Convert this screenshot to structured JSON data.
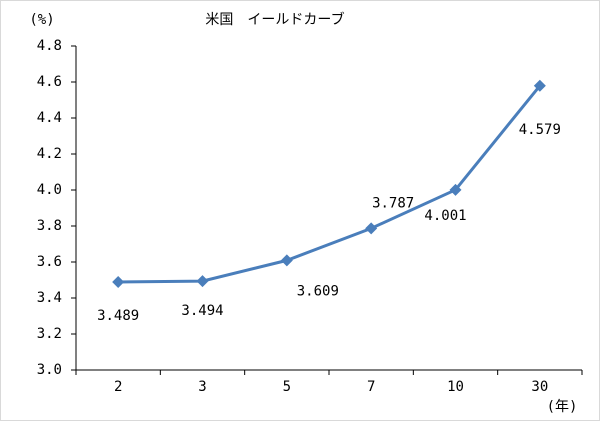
{
  "chart_data": {
    "type": "line",
    "title": "米国　イールドカーブ",
    "y_label": "(%)",
    "x_label": "(年)",
    "categories": [
      "2",
      "3",
      "5",
      "7",
      "10",
      "30"
    ],
    "values": [
      3.489,
      3.494,
      3.609,
      3.787,
      4.001,
      4.579
    ],
    "color": "#4a7ebb",
    "ylim": [
      3.0,
      4.8
    ],
    "yticks": [
      {
        "value": 3.0,
        "label": "3.0"
      },
      3.2,
      3.4,
      3.6,
      3.8,
      {
        "value": 4.0,
        "label": "4.0"
      },
      4.2,
      4.4,
      4.6,
      4.8
    ],
    "grid": false
  }
}
